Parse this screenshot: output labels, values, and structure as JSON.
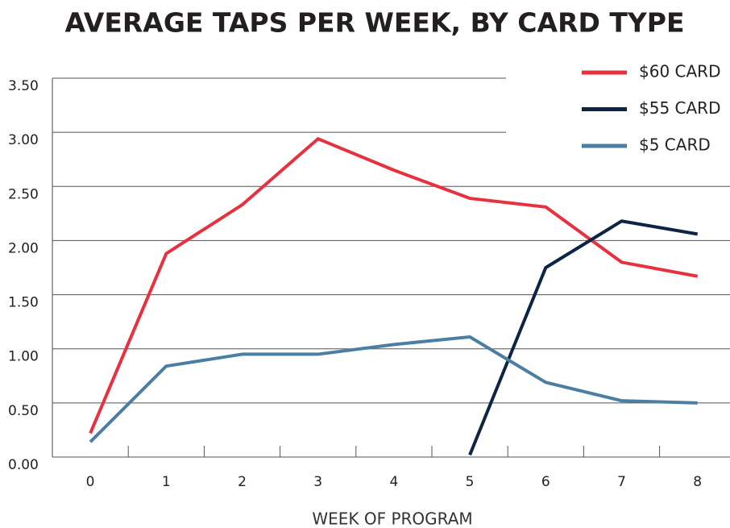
{
  "chart_data": {
    "type": "line",
    "title": "AVERAGE TAPS PER WEEK, BY CARD TYPE",
    "x_label": "WEEK OF PROGRAM",
    "categories": [
      "0",
      "1",
      "2",
      "3",
      "4",
      "5",
      "6",
      "7",
      "8"
    ],
    "series": [
      {
        "name": "$60 CARD",
        "color": "#e8313f",
        "values": [
          0.22,
          1.88,
          2.33,
          2.94,
          2.65,
          2.39,
          2.31,
          1.8,
          1.67
        ]
      },
      {
        "name": "$55 CARD",
        "color": "#0d2444",
        "values": [
          null,
          null,
          null,
          null,
          null,
          0.02,
          1.75,
          2.18,
          2.06
        ]
      },
      {
        "name": "$5 CARD",
        "color": "#4a7fa3",
        "values": [
          0.14,
          0.84,
          0.95,
          0.95,
          1.04,
          1.11,
          0.69,
          0.52,
          0.5
        ]
      }
    ],
    "ylim": [
      0,
      3.5
    ],
    "yticks": [
      {
        "value": 0,
        "label": "0.00"
      },
      {
        "value": 0.5,
        "label": "0.50"
      },
      {
        "value": 1,
        "label": "1.00"
      },
      {
        "value": 1.5,
        "label": "1.50"
      },
      {
        "value": 2,
        "label": "2.00"
      },
      {
        "value": 2.5,
        "label": "2.50"
      },
      {
        "value": 3,
        "label": "3.00"
      },
      {
        "value": 3.5,
        "label": "3.50"
      }
    ],
    "grid": true,
    "legend": "upper right"
  }
}
